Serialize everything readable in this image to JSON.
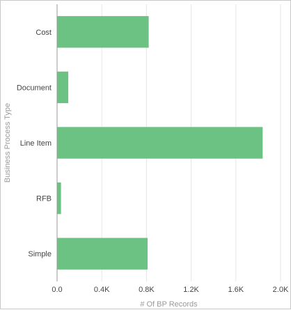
{
  "chart_data": {
    "type": "bar",
    "orientation": "horizontal",
    "categories": [
      "Cost",
      "Document",
      "Line Item",
      "RFB",
      "Simple"
    ],
    "values": [
      820,
      100,
      1840,
      35,
      810
    ],
    "xlabel": "# Of BP Records",
    "ylabel": "Business Process Type",
    "xlim": [
      0,
      2000
    ],
    "x_ticks": [
      "0.0",
      "0.4K",
      "0.8K",
      "1.2K",
      "1.6K",
      "2.0K"
    ],
    "grid": "vertical",
    "bar_color": "#6cc282"
  }
}
